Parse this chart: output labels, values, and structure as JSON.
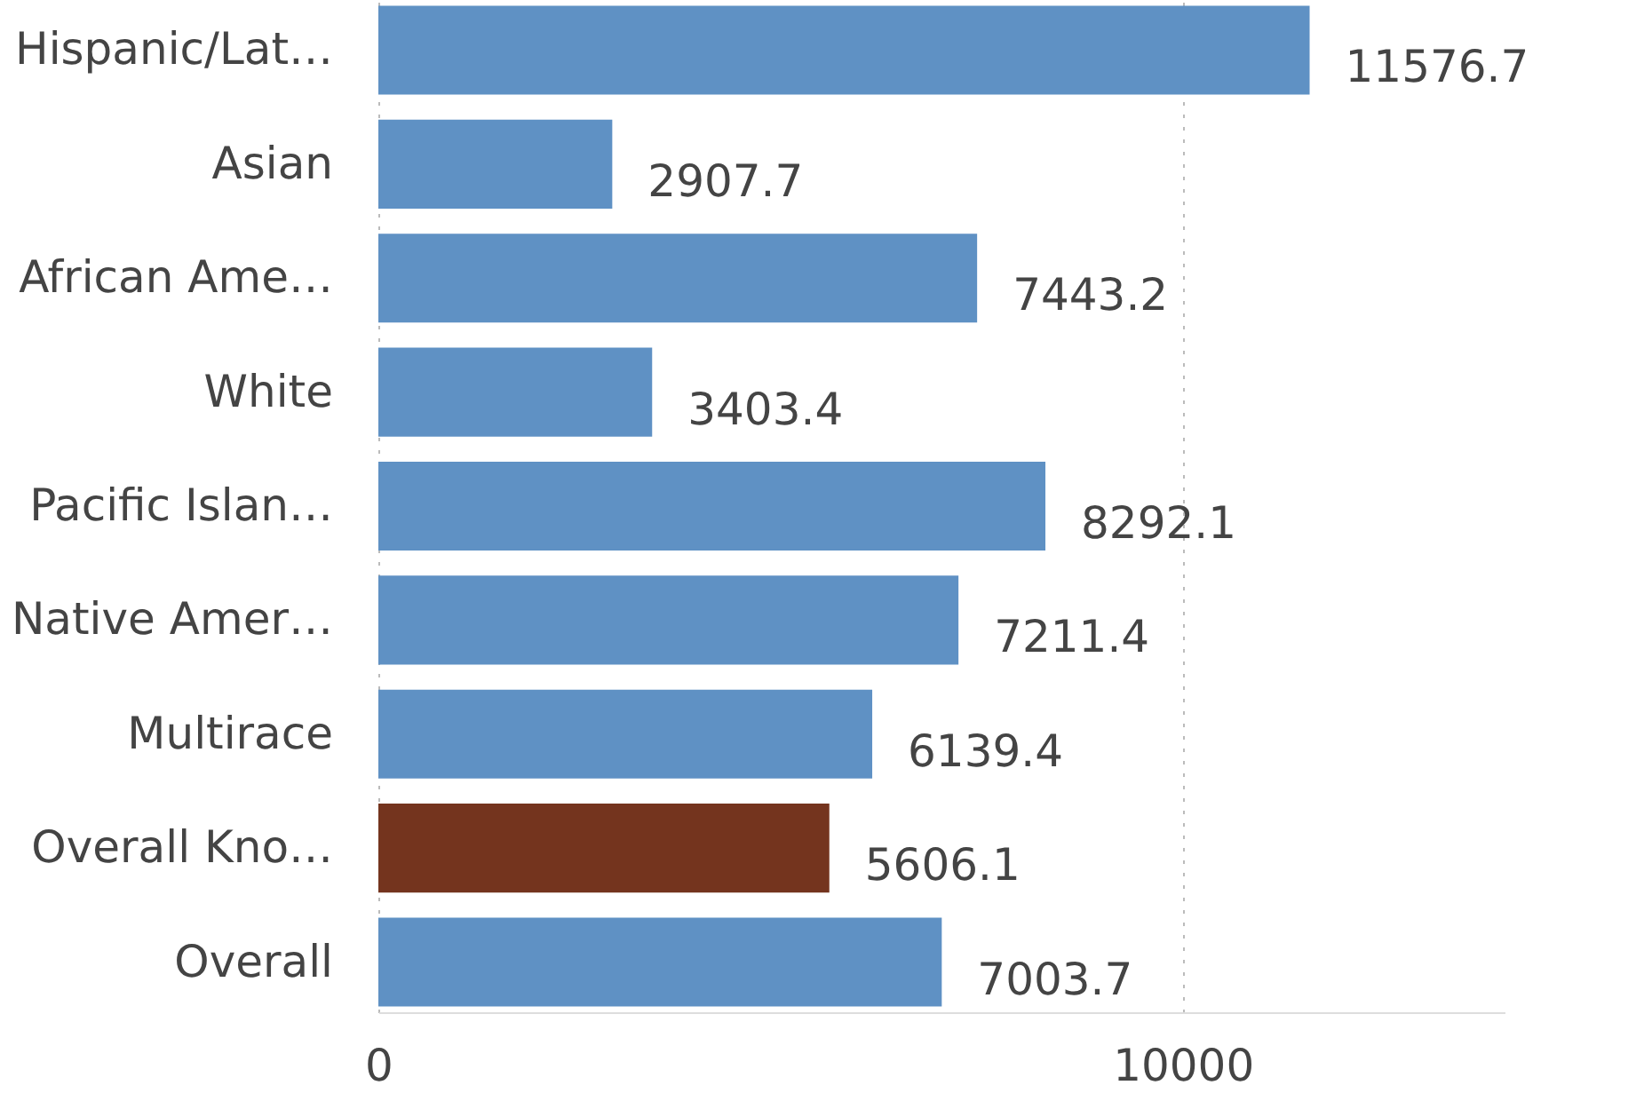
{
  "chart_data": {
    "type": "bar",
    "orientation": "horizontal",
    "categories": [
      "Hispanic/Lat…",
      "Asian",
      "African Ame…",
      "White",
      "Pacific Islan…",
      "Native Amer…",
      "Multirace",
      "Overall Kno…",
      "Overall"
    ],
    "values": [
      11576.7,
      2907.7,
      7443.2,
      3403.4,
      8292.1,
      7211.4,
      6139.4,
      5606.1,
      7003.7
    ],
    "colors": [
      "#5f91c4",
      "#5f91c4",
      "#5f91c4",
      "#5f91c4",
      "#5f91c4",
      "#5f91c4",
      "#5f91c4",
      "#74341e",
      "#5f91c4"
    ],
    "xlim": [
      0,
      14000
    ],
    "xticks": [
      0,
      10000
    ],
    "grid": "x",
    "data_labels": true
  }
}
